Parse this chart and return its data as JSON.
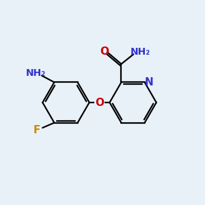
{
  "background_color": "#e8f0f8",
  "bond_color": "#000000",
  "atom_colors": {
    "O": "#cc0000",
    "N": "#3333cc",
    "F": "#cc8800",
    "NH2": "#3333cc"
  },
  "figsize": [
    3.0,
    3.0
  ],
  "dpi": 100
}
